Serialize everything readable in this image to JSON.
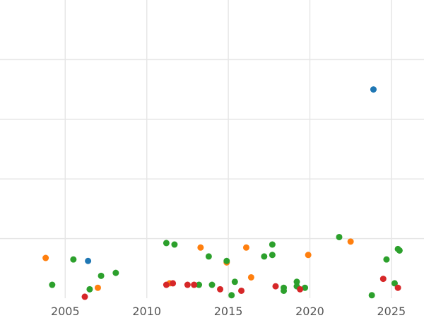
{
  "chart_data": {
    "type": "scatter",
    "title": "",
    "xlabel": "",
    "ylabel": "",
    "xlim": [
      2001,
      2027
    ],
    "ylim": [
      0,
      10
    ],
    "grid": true,
    "x_ticks": [
      2005,
      2010,
      2015,
      2020,
      2025
    ],
    "x_tick_labels": [
      "2005",
      "2010",
      "2015",
      "2020",
      "2025"
    ],
    "y_ticks": [
      2,
      4,
      6,
      8
    ],
    "y_tick_labels": [],
    "series": [
      {
        "color": "#1f77b4",
        "points": [
          [
            2006.4,
            1.25
          ],
          [
            2023.9,
            7.0
          ]
        ]
      },
      {
        "color": "#ff7f0e",
        "points": [
          [
            2003.8,
            1.35
          ],
          [
            2007.0,
            0.35
          ],
          [
            2011.4,
            0.5
          ],
          [
            2013.3,
            1.7
          ],
          [
            2014.9,
            1.2
          ],
          [
            2016.1,
            1.7
          ],
          [
            2016.4,
            0.7
          ],
          [
            2019.9,
            1.45
          ],
          [
            2022.5,
            1.9
          ]
        ]
      },
      {
        "color": "#2ca02c",
        "points": [
          [
            2004.2,
            0.45
          ],
          [
            2005.5,
            1.3
          ],
          [
            2006.5,
            0.3
          ],
          [
            2007.2,
            0.75
          ],
          [
            2008.1,
            0.85
          ],
          [
            2011.2,
            1.85
          ],
          [
            2011.7,
            1.8
          ],
          [
            2013.2,
            0.45
          ],
          [
            2013.8,
            1.4
          ],
          [
            2014.0,
            0.45
          ],
          [
            2014.9,
            1.25
          ],
          [
            2015.2,
            0.1
          ],
          [
            2015.4,
            0.55
          ],
          [
            2017.2,
            1.4
          ],
          [
            2017.7,
            1.45
          ],
          [
            2017.7,
            1.8
          ],
          [
            2018.4,
            0.35
          ],
          [
            2018.4,
            0.25
          ],
          [
            2019.2,
            0.55
          ],
          [
            2019.2,
            0.4
          ],
          [
            2019.7,
            0.35
          ],
          [
            2021.8,
            2.05
          ],
          [
            2023.8,
            0.1
          ],
          [
            2024.7,
            1.3
          ],
          [
            2025.2,
            0.5
          ],
          [
            2025.4,
            1.65
          ],
          [
            2025.5,
            1.6
          ]
        ]
      },
      {
        "color": "#d62728",
        "points": [
          [
            2006.2,
            0.05
          ],
          [
            2011.2,
            0.45
          ],
          [
            2011.6,
            0.5
          ],
          [
            2012.5,
            0.45
          ],
          [
            2012.9,
            0.45
          ],
          [
            2014.5,
            0.3
          ],
          [
            2015.8,
            0.25
          ],
          [
            2017.9,
            0.4
          ],
          [
            2019.4,
            0.3
          ],
          [
            2024.5,
            0.65
          ],
          [
            2025.4,
            0.35
          ]
        ]
      }
    ]
  }
}
